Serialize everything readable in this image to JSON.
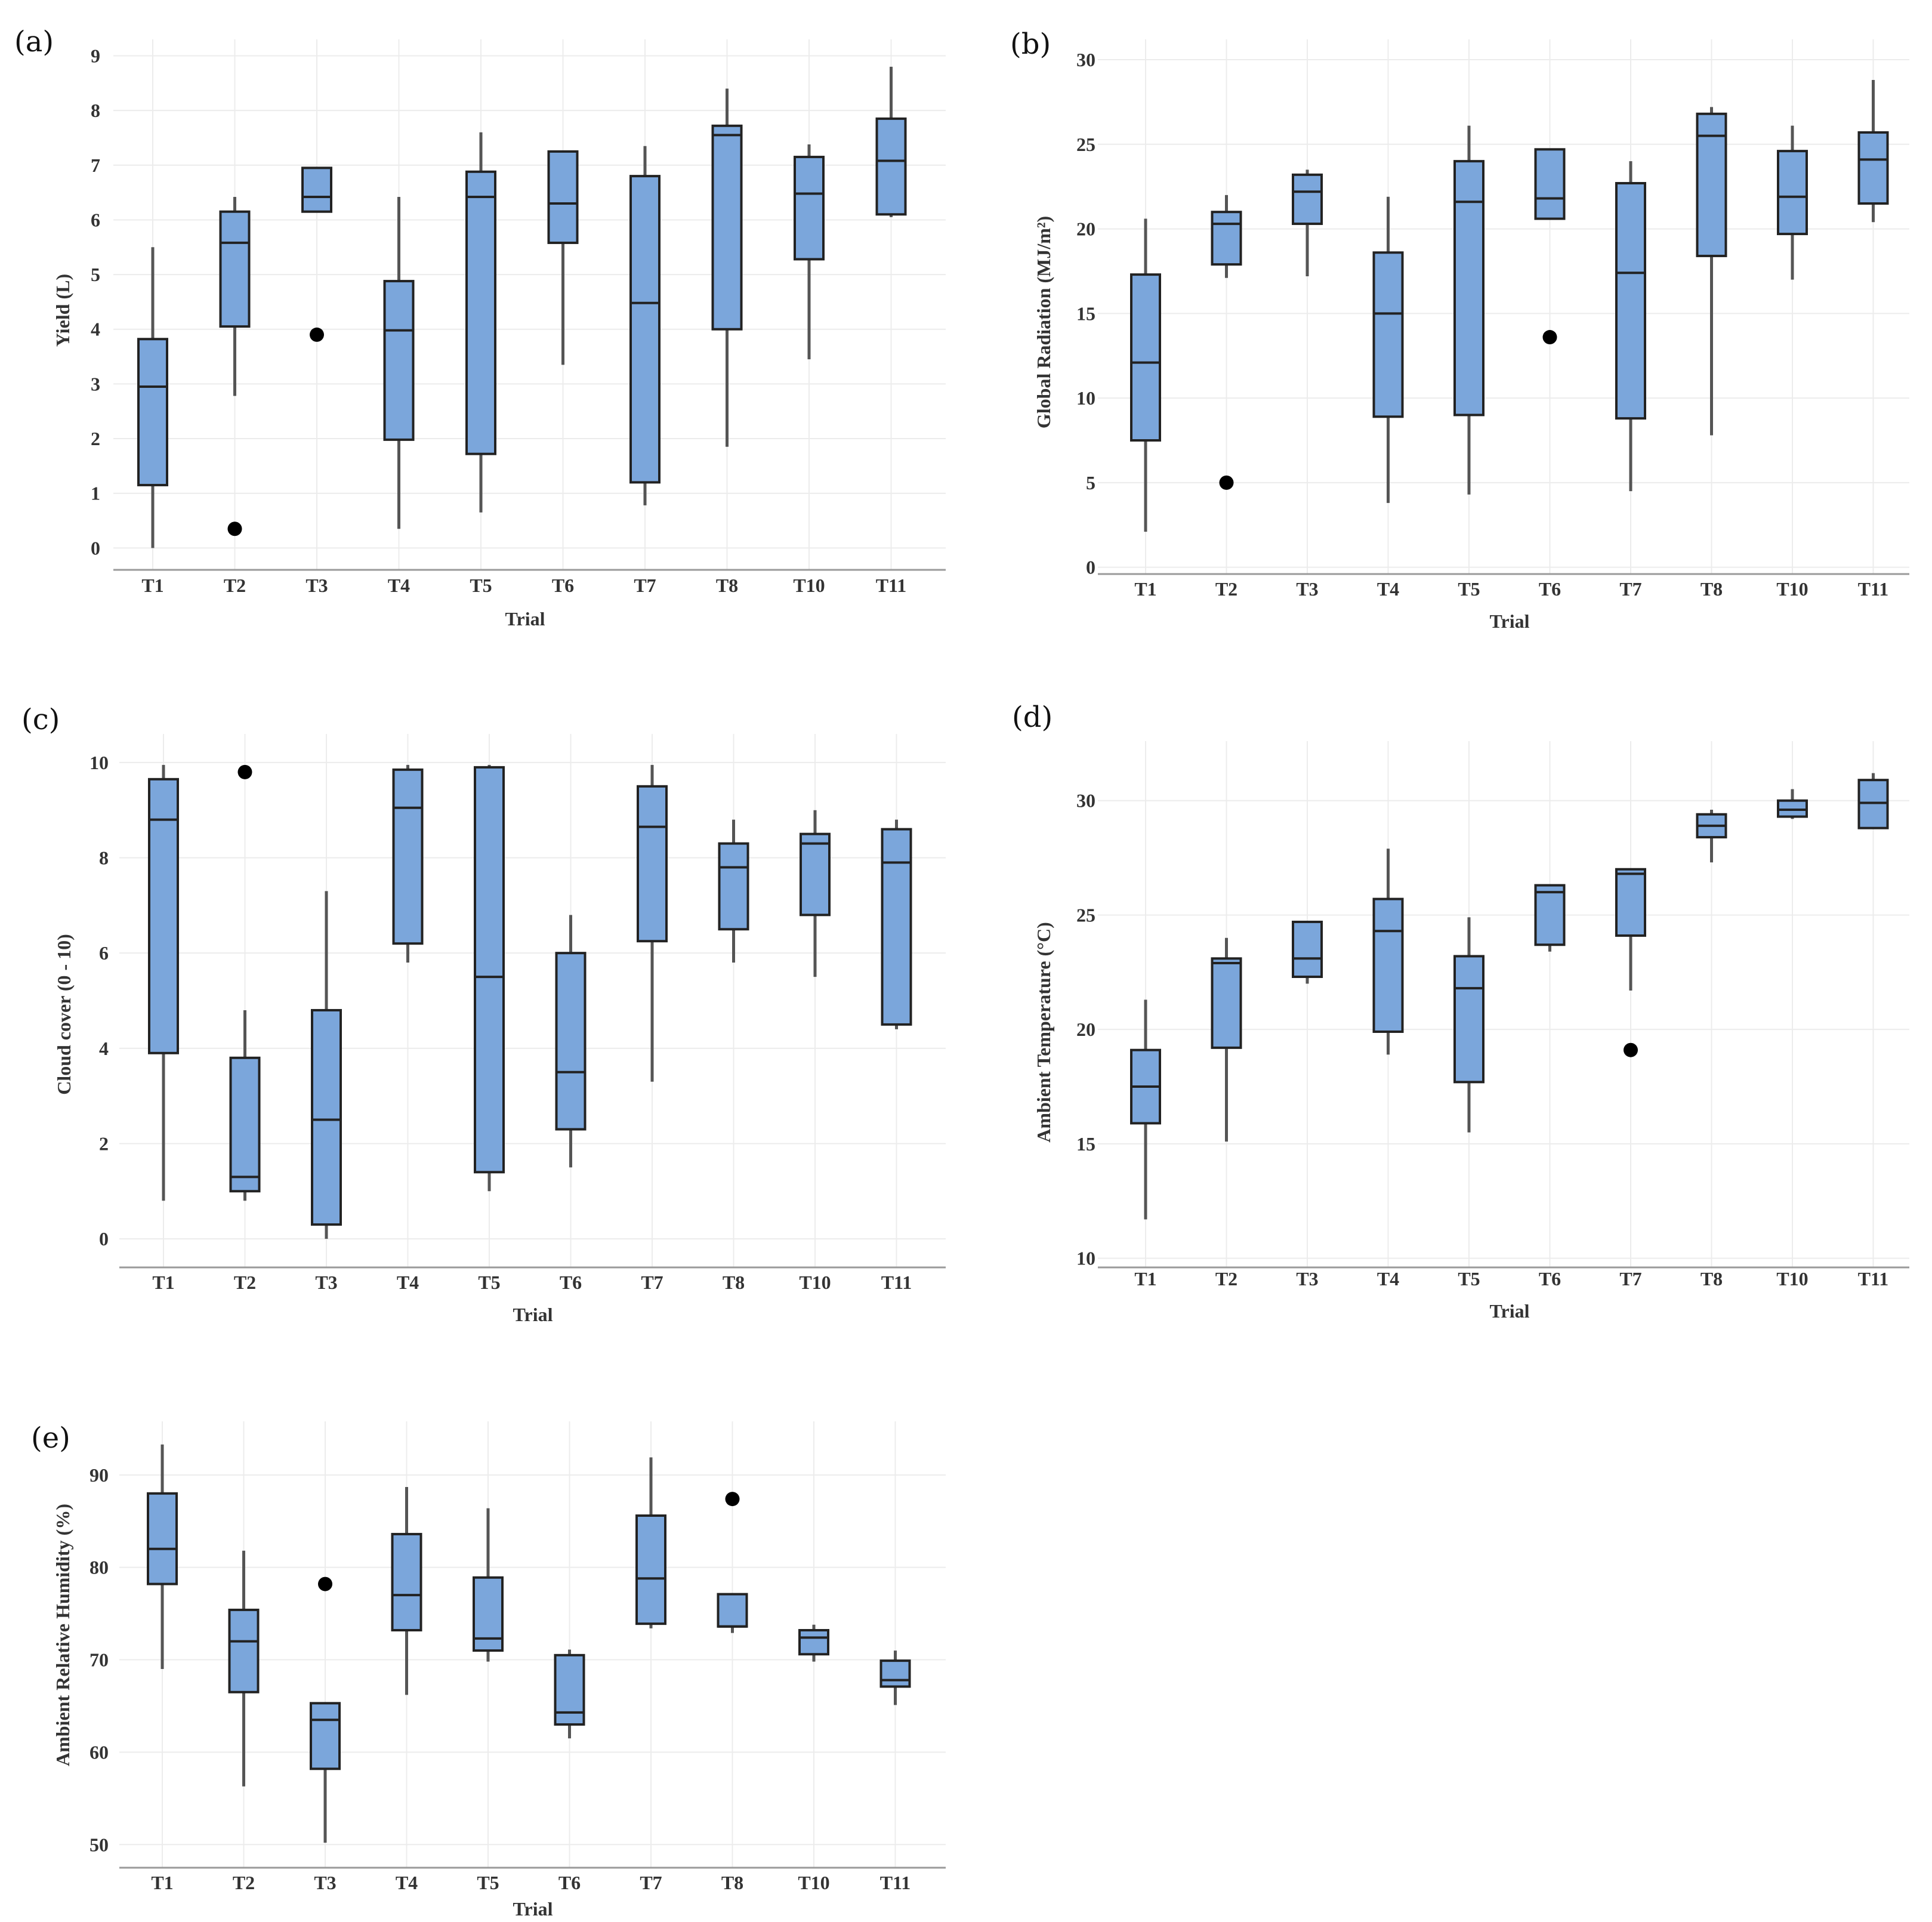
{
  "colors": {
    "box_fill": "#7ba6db",
    "box_stroke": "#222222",
    "outlier": "#000000"
  },
  "chart_data": [
    {
      "type": "boxplot",
      "panel": "(a)",
      "xlabel": "Trial",
      "ylabel": "Yield (L)",
      "categories": [
        "T1",
        "T2",
        "T3",
        "T4",
        "T5",
        "T6",
        "T7",
        "T8",
        "T10",
        "T11"
      ],
      "ylim": [
        -0.4,
        9.3
      ],
      "yticks": [
        0,
        1,
        2,
        3,
        4,
        5,
        6,
        7,
        8,
        9
      ],
      "boxes": [
        {
          "trial": "T1",
          "min": 0.0,
          "q1": 1.15,
          "median": 2.95,
          "q3": 3.82,
          "max": 5.5,
          "outliers": []
        },
        {
          "trial": "T2",
          "min": 2.78,
          "q1": 4.05,
          "median": 5.58,
          "q3": 6.15,
          "max": 6.42,
          "outliers": [
            0.35
          ]
        },
        {
          "trial": "T3",
          "min": 6.15,
          "q1": 6.15,
          "median": 6.42,
          "q3": 6.95,
          "max": 6.95,
          "outliers": [
            3.9
          ]
        },
        {
          "trial": "T4",
          "min": 0.35,
          "q1": 1.98,
          "median": 3.98,
          "q3": 4.88,
          "max": 6.42,
          "outliers": []
        },
        {
          "trial": "T5",
          "min": 0.65,
          "q1": 1.72,
          "median": 6.42,
          "q3": 6.88,
          "max": 7.6,
          "outliers": []
        },
        {
          "trial": "T6",
          "min": 3.35,
          "q1": 5.58,
          "median": 6.3,
          "q3": 7.25,
          "max": 7.25,
          "outliers": []
        },
        {
          "trial": "T7",
          "min": 0.78,
          "q1": 1.2,
          "median": 4.48,
          "q3": 6.8,
          "max": 7.35,
          "outliers": []
        },
        {
          "trial": "T8",
          "min": 1.85,
          "q1": 4.0,
          "median": 7.55,
          "q3": 7.72,
          "max": 8.4,
          "outliers": []
        },
        {
          "trial": "T10",
          "min": 3.45,
          "q1": 5.28,
          "median": 6.48,
          "q3": 7.15,
          "max": 7.38,
          "outliers": []
        },
        {
          "trial": "T11",
          "min": 6.05,
          "q1": 6.1,
          "median": 7.08,
          "q3": 7.85,
          "max": 8.8,
          "outliers": []
        }
      ]
    },
    {
      "type": "boxplot",
      "panel": "(b)",
      "xlabel": "Trial",
      "ylabel": "Global Radiation (MJ/m²)",
      "categories": [
        "T1",
        "T2",
        "T3",
        "T4",
        "T5",
        "T6",
        "T7",
        "T8",
        "T10",
        "T11"
      ],
      "ylim": [
        -0.4,
        31.2
      ],
      "yticks": [
        0,
        5,
        10,
        15,
        20,
        25,
        30
      ],
      "boxes": [
        {
          "trial": "T1",
          "min": 2.1,
          "q1": 7.5,
          "median": 12.1,
          "q3": 17.3,
          "max": 20.6,
          "outliers": []
        },
        {
          "trial": "T2",
          "min": 17.1,
          "q1": 17.9,
          "median": 20.3,
          "q3": 21.0,
          "max": 22.0,
          "outliers": [
            5.0
          ]
        },
        {
          "trial": "T3",
          "min": 17.2,
          "q1": 20.3,
          "median": 22.2,
          "q3": 23.2,
          "max": 23.5,
          "outliers": []
        },
        {
          "trial": "T4",
          "min": 3.8,
          "q1": 8.9,
          "median": 15.0,
          "q3": 18.6,
          "max": 21.9,
          "outliers": []
        },
        {
          "trial": "T5",
          "min": 4.3,
          "q1": 9.0,
          "median": 21.6,
          "q3": 24.0,
          "max": 26.1,
          "outliers": []
        },
        {
          "trial": "T6",
          "min": 20.6,
          "q1": 20.6,
          "median": 21.8,
          "q3": 24.7,
          "max": 24.7,
          "outliers": [
            13.6
          ]
        },
        {
          "trial": "T7",
          "min": 4.5,
          "q1": 8.8,
          "median": 17.4,
          "q3": 22.7,
          "max": 24.0,
          "outliers": []
        },
        {
          "trial": "T8",
          "min": 7.8,
          "q1": 18.4,
          "median": 25.5,
          "q3": 26.8,
          "max": 27.2,
          "outliers": []
        },
        {
          "trial": "T10",
          "min": 17.0,
          "q1": 19.7,
          "median": 21.9,
          "q3": 24.6,
          "max": 26.1,
          "outliers": []
        },
        {
          "trial": "T11",
          "min": 20.4,
          "q1": 21.5,
          "median": 24.1,
          "q3": 25.7,
          "max": 28.8,
          "outliers": []
        }
      ]
    },
    {
      "type": "boxplot",
      "panel": "(c)",
      "xlabel": "Trial",
      "ylabel": "Cloud cover (0 - 10)",
      "categories": [
        "T1",
        "T2",
        "T3",
        "T4",
        "T5",
        "T6",
        "T7",
        "T8",
        "T10",
        "T11"
      ],
      "ylim": [
        -0.6,
        10.6
      ],
      "yticks": [
        0,
        2,
        4,
        6,
        8,
        10
      ],
      "boxes": [
        {
          "trial": "T1",
          "min": 0.8,
          "q1": 3.9,
          "median": 8.8,
          "q3": 9.65,
          "max": 9.95,
          "outliers": []
        },
        {
          "trial": "T2",
          "min": 0.8,
          "q1": 1.0,
          "median": 1.3,
          "q3": 3.8,
          "max": 4.8,
          "outliers": [
            9.8
          ]
        },
        {
          "trial": "T3",
          "min": 0.0,
          "q1": 0.3,
          "median": 2.5,
          "q3": 4.8,
          "max": 7.3,
          "outliers": []
        },
        {
          "trial": "T4",
          "min": 5.8,
          "q1": 6.2,
          "median": 9.05,
          "q3": 9.85,
          "max": 9.95,
          "outliers": []
        },
        {
          "trial": "T5",
          "min": 1.0,
          "q1": 1.4,
          "median": 5.5,
          "q3": 9.9,
          "max": 9.95,
          "outliers": []
        },
        {
          "trial": "T6",
          "min": 1.5,
          "q1": 2.3,
          "median": 3.5,
          "q3": 6.0,
          "max": 6.8,
          "outliers": []
        },
        {
          "trial": "T7",
          "min": 3.3,
          "q1": 6.25,
          "median": 8.65,
          "q3": 9.5,
          "max": 9.95,
          "outliers": []
        },
        {
          "trial": "T8",
          "min": 5.8,
          "q1": 6.5,
          "median": 7.8,
          "q3": 8.3,
          "max": 8.8,
          "outliers": []
        },
        {
          "trial": "T10",
          "min": 5.5,
          "q1": 6.8,
          "median": 8.3,
          "q3": 8.5,
          "max": 9.0,
          "outliers": []
        },
        {
          "trial": "T11",
          "min": 4.4,
          "q1": 4.5,
          "median": 7.9,
          "q3": 8.6,
          "max": 8.8,
          "outliers": []
        }
      ]
    },
    {
      "type": "boxplot",
      "panel": "(d)",
      "xlabel": "Trial",
      "ylabel": "Ambient Temperature (°C)",
      "categories": [
        "T1",
        "T2",
        "T3",
        "T4",
        "T5",
        "T6",
        "T7",
        "T8",
        "T10",
        "T11"
      ],
      "ylim": [
        9.6,
        32.6
      ],
      "yticks": [
        10,
        15,
        20,
        25,
        30
      ],
      "boxes": [
        {
          "trial": "T1",
          "min": 11.7,
          "q1": 15.9,
          "median": 17.5,
          "q3": 19.1,
          "max": 21.3,
          "outliers": []
        },
        {
          "trial": "T2",
          "min": 15.1,
          "q1": 19.2,
          "median": 22.9,
          "q3": 23.1,
          "max": 24.0,
          "outliers": []
        },
        {
          "trial": "T3",
          "min": 22.0,
          "q1": 22.3,
          "median": 23.1,
          "q3": 24.7,
          "max": 24.7,
          "outliers": []
        },
        {
          "trial": "T4",
          "min": 18.9,
          "q1": 19.9,
          "median": 24.3,
          "q3": 25.7,
          "max": 27.9,
          "outliers": []
        },
        {
          "trial": "T5",
          "min": 15.5,
          "q1": 17.7,
          "median": 21.8,
          "q3": 23.2,
          "max": 24.9,
          "outliers": []
        },
        {
          "trial": "T6",
          "min": 23.4,
          "q1": 23.7,
          "median": 26.0,
          "q3": 26.3,
          "max": 26.3,
          "outliers": []
        },
        {
          "trial": "T7",
          "min": 21.7,
          "q1": 24.1,
          "median": 26.8,
          "q3": 27.0,
          "max": 27.0,
          "outliers": [
            19.1
          ]
        },
        {
          "trial": "T8",
          "min": 27.3,
          "q1": 28.4,
          "median": 28.9,
          "q3": 29.4,
          "max": 29.6,
          "outliers": []
        },
        {
          "trial": "T10",
          "min": 29.2,
          "q1": 29.3,
          "median": 29.6,
          "q3": 30.0,
          "max": 30.5,
          "outliers": []
        },
        {
          "trial": "T11",
          "min": 28.8,
          "q1": 28.8,
          "median": 29.9,
          "q3": 30.9,
          "max": 31.2,
          "outliers": []
        }
      ]
    },
    {
      "type": "boxplot",
      "panel": "(e)",
      "xlabel": "Trial",
      "ylabel": "Ambient Relative Humidity (%)",
      "categories": [
        "T1",
        "T2",
        "T3",
        "T4",
        "T5",
        "T6",
        "T7",
        "T8",
        "T10",
        "T11"
      ],
      "ylim": [
        47.5,
        95.8
      ],
      "yticks": [
        50,
        60,
        70,
        80,
        90
      ],
      "boxes": [
        {
          "trial": "T1",
          "min": 69.0,
          "q1": 78.2,
          "median": 82.0,
          "q3": 88.0,
          "max": 93.3,
          "outliers": []
        },
        {
          "trial": "T2",
          "min": 56.3,
          "q1": 66.5,
          "median": 72.0,
          "q3": 75.4,
          "max": 81.8,
          "outliers": []
        },
        {
          "trial": "T3",
          "min": 50.2,
          "q1": 58.2,
          "median": 63.5,
          "q3": 65.3,
          "max": 65.3,
          "outliers": [
            78.2
          ]
        },
        {
          "trial": "T4",
          "min": 66.2,
          "q1": 73.2,
          "median": 77.0,
          "q3": 83.6,
          "max": 88.7,
          "outliers": []
        },
        {
          "trial": "T5",
          "min": 69.8,
          "q1": 71.0,
          "median": 72.3,
          "q3": 78.9,
          "max": 86.4,
          "outliers": []
        },
        {
          "trial": "T6",
          "min": 61.5,
          "q1": 63.0,
          "median": 64.3,
          "q3": 70.5,
          "max": 71.1,
          "outliers": []
        },
        {
          "trial": "T7",
          "min": 73.4,
          "q1": 73.9,
          "median": 78.8,
          "q3": 85.6,
          "max": 91.9,
          "outliers": []
        },
        {
          "trial": "T8",
          "min": 72.9,
          "q1": 73.6,
          "median": 73.6,
          "q3": 77.1,
          "max": 77.1,
          "outliers": [
            87.4
          ]
        },
        {
          "trial": "T10",
          "min": 69.8,
          "q1": 70.6,
          "median": 72.4,
          "q3": 73.2,
          "max": 73.8,
          "outliers": []
        },
        {
          "trial": "T11",
          "min": 65.1,
          "q1": 67.1,
          "median": 67.8,
          "q3": 69.9,
          "max": 71.0,
          "outliers": []
        }
      ]
    }
  ]
}
